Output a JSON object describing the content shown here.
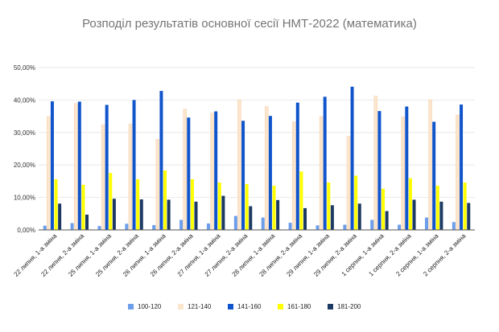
{
  "chart_data": {
    "type": "bar",
    "title": "Розподіл результатів основної сесії НМТ-2022 (математика)",
    "xlabel": "",
    "ylabel": "",
    "ylim": [
      0,
      50
    ],
    "y_ticks": [
      0,
      10,
      20,
      30,
      40,
      50
    ],
    "y_tick_labels": [
      "0,00%",
      "10,00%",
      "20,00%",
      "30,00%",
      "40,00%",
      "50,00%"
    ],
    "grid": true,
    "legend_position": "bottom",
    "categories": [
      "22 липня, 1-а зміна",
      "22 липня, 2-а зміна",
      "25 липня, 1-а зміна",
      "25 липня, 2-а зміна",
      "26 липня, 1-а зміна",
      "26 липня, 2-а зміна",
      "27 липня, 1-а зміна",
      "27 липня, 2-а зміна",
      "28 липня, 1-а зміна",
      "28 липня, 2-а зміна",
      "29 липня, 1-а зміна",
      "29 липня, 2-а зміна",
      "1 серпня, 1-а зміна",
      "1 серпня, 2-а зміна",
      "2 серпня, 1-а зміна",
      "2 серпня, 2-а зміна"
    ],
    "series": [
      {
        "name": "100-120",
        "color": "#6d9eeb",
        "values": [
          1.3,
          2.1,
          1.2,
          1.9,
          1.5,
          3.1,
          2.0,
          4.3,
          3.8,
          2.2,
          1.4,
          1.6,
          3.1,
          1.6,
          3.8,
          2.4
        ]
      },
      {
        "name": "121-140",
        "color": "#fce5cd",
        "values": [
          34.9,
          38.9,
          32.4,
          32.6,
          27.9,
          37.2,
          36.0,
          40.1,
          38.0,
          33.3,
          34.9,
          28.8,
          41.2,
          34.8,
          40.1,
          35.4
        ]
      },
      {
        "name": "141-160",
        "color": "#1155cc",
        "values": [
          39.6,
          39.5,
          38.5,
          40.0,
          42.8,
          34.6,
          36.5,
          33.6,
          35.1,
          39.2,
          41.0,
          44.1,
          36.6,
          38.0,
          33.3,
          38.6
        ]
      },
      {
        "name": "161-180",
        "color": "#ffff00",
        "values": [
          15.6,
          13.9,
          17.5,
          15.6,
          18.3,
          15.6,
          14.6,
          14.1,
          13.6,
          18.0,
          14.6,
          16.7,
          12.7,
          15.9,
          13.6,
          14.6
        ]
      },
      {
        "name": "181-200",
        "color": "#1c3a63",
        "values": [
          8.1,
          4.7,
          9.6,
          9.4,
          9.3,
          8.7,
          10.5,
          7.3,
          9.2,
          6.7,
          7.6,
          8.1,
          5.8,
          9.3,
          8.7,
          8.3
        ]
      }
    ]
  }
}
